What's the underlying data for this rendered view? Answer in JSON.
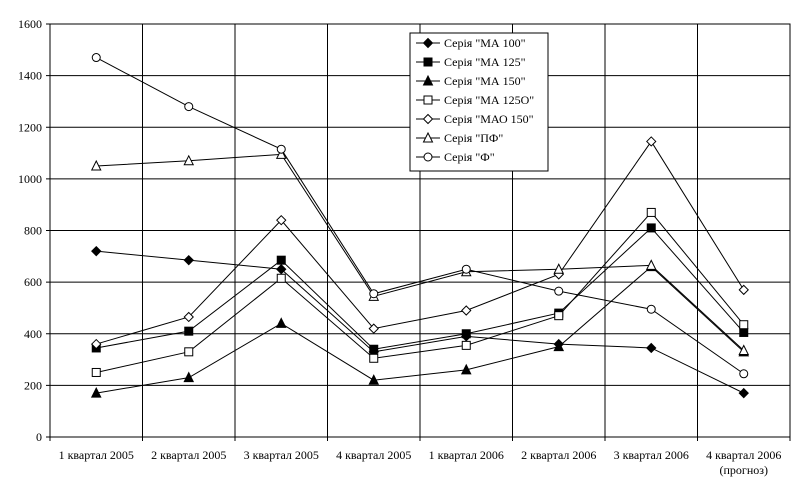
{
  "chart_data": {
    "type": "line",
    "title": "",
    "xlabel": "",
    "ylabel": "",
    "ylim": [
      0,
      1600
    ],
    "yticks": [
      0,
      200,
      400,
      600,
      800,
      1000,
      1200,
      1400,
      1600
    ],
    "grid": true,
    "legend_position": "top-center",
    "categories": [
      [
        "1 квартал 2005"
      ],
      [
        "2 квартал 2005"
      ],
      [
        "3 квартал 2005"
      ],
      [
        "4 квартал 2005"
      ],
      [
        "1 квартал 2006"
      ],
      [
        "2 квартал 2006"
      ],
      [
        "3 квартал 2006"
      ],
      [
        "4 квартал 2006",
        "(прогноз)"
      ]
    ],
    "series": [
      {
        "name": "Серія \"МА 100\"",
        "marker": "diamond-filled",
        "values": [
          720,
          685,
          650,
          330,
          390,
          360,
          345,
          170
        ]
      },
      {
        "name": "Серія \"МА 125\"",
        "marker": "square-filled",
        "values": [
          345,
          410,
          685,
          340,
          400,
          480,
          810,
          405
        ]
      },
      {
        "name": "Серія \"МА 150\"",
        "marker": "triangle-filled",
        "values": [
          170,
          230,
          440,
          220,
          260,
          350,
          660,
          330
        ]
      },
      {
        "name": "Серія \"МА 125О\"",
        "marker": "square-open",
        "values": [
          250,
          330,
          615,
          305,
          355,
          470,
          870,
          435
        ]
      },
      {
        "name": "Серія \"МАО 150\"",
        "marker": "diamond-open",
        "values": [
          360,
          465,
          840,
          420,
          490,
          630,
          1145,
          570
        ]
      },
      {
        "name": "Серія \"ПФ\"",
        "marker": "triangle-open",
        "values": [
          1050,
          1070,
          1095,
          545,
          640,
          650,
          665,
          335
        ]
      },
      {
        "name": "Серія \"Ф\"",
        "marker": "circle-open",
        "values": [
          1470,
          1280,
          1115,
          555,
          650,
          565,
          495,
          245
        ]
      }
    ]
  }
}
